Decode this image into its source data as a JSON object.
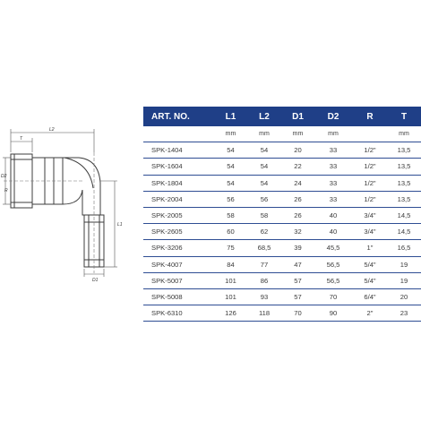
{
  "colors": {
    "header_bg": "#1f3f87",
    "header_text": "#ffffff",
    "row_line": "#2e4d93",
    "drawing_line": "#3c3c3c",
    "dim_line": "#555555"
  },
  "drawing": {
    "labels": {
      "T": "T",
      "L2": "L2",
      "D2": "D2",
      "R": "R",
      "L1": "L1",
      "D1": "D1"
    }
  },
  "table": {
    "headers": [
      "ART. NO.",
      "L1",
      "L2",
      "D1",
      "D2",
      "R",
      "T"
    ],
    "units": [
      "",
      "mm",
      "mm",
      "mm",
      "mm",
      "",
      "mm"
    ],
    "rows": [
      [
        "SPK-1404",
        "54",
        "54",
        "20",
        "33",
        "1/2\"",
        "13,5"
      ],
      [
        "SPK-1604",
        "54",
        "54",
        "22",
        "33",
        "1/2\"",
        "13,5"
      ],
      [
        "SPK-1804",
        "54",
        "54",
        "24",
        "33",
        "1/2\"",
        "13,5"
      ],
      [
        "SPK-2004",
        "56",
        "56",
        "26",
        "33",
        "1/2\"",
        "13,5"
      ],
      [
        "SPK-2005",
        "58",
        "58",
        "26",
        "40",
        "3/4\"",
        "14,5"
      ],
      [
        "SPK-2605",
        "60",
        "62",
        "32",
        "40",
        "3/4\"",
        "14,5"
      ],
      [
        "SPK-3206",
        "75",
        "68,5",
        "39",
        "45,5",
        "1\"",
        "16,5"
      ],
      [
        "SPK-4007",
        "84",
        "77",
        "47",
        "56,5",
        "5/4\"",
        "19"
      ],
      [
        "SPK-5007",
        "101",
        "86",
        "57",
        "56,5",
        "5/4\"",
        "19"
      ],
      [
        "SPK-5008",
        "101",
        "93",
        "57",
        "70",
        "6/4\"",
        "20"
      ],
      [
        "SPK-6310",
        "126",
        "118",
        "70",
        "90",
        "2\"",
        "23"
      ]
    ]
  }
}
